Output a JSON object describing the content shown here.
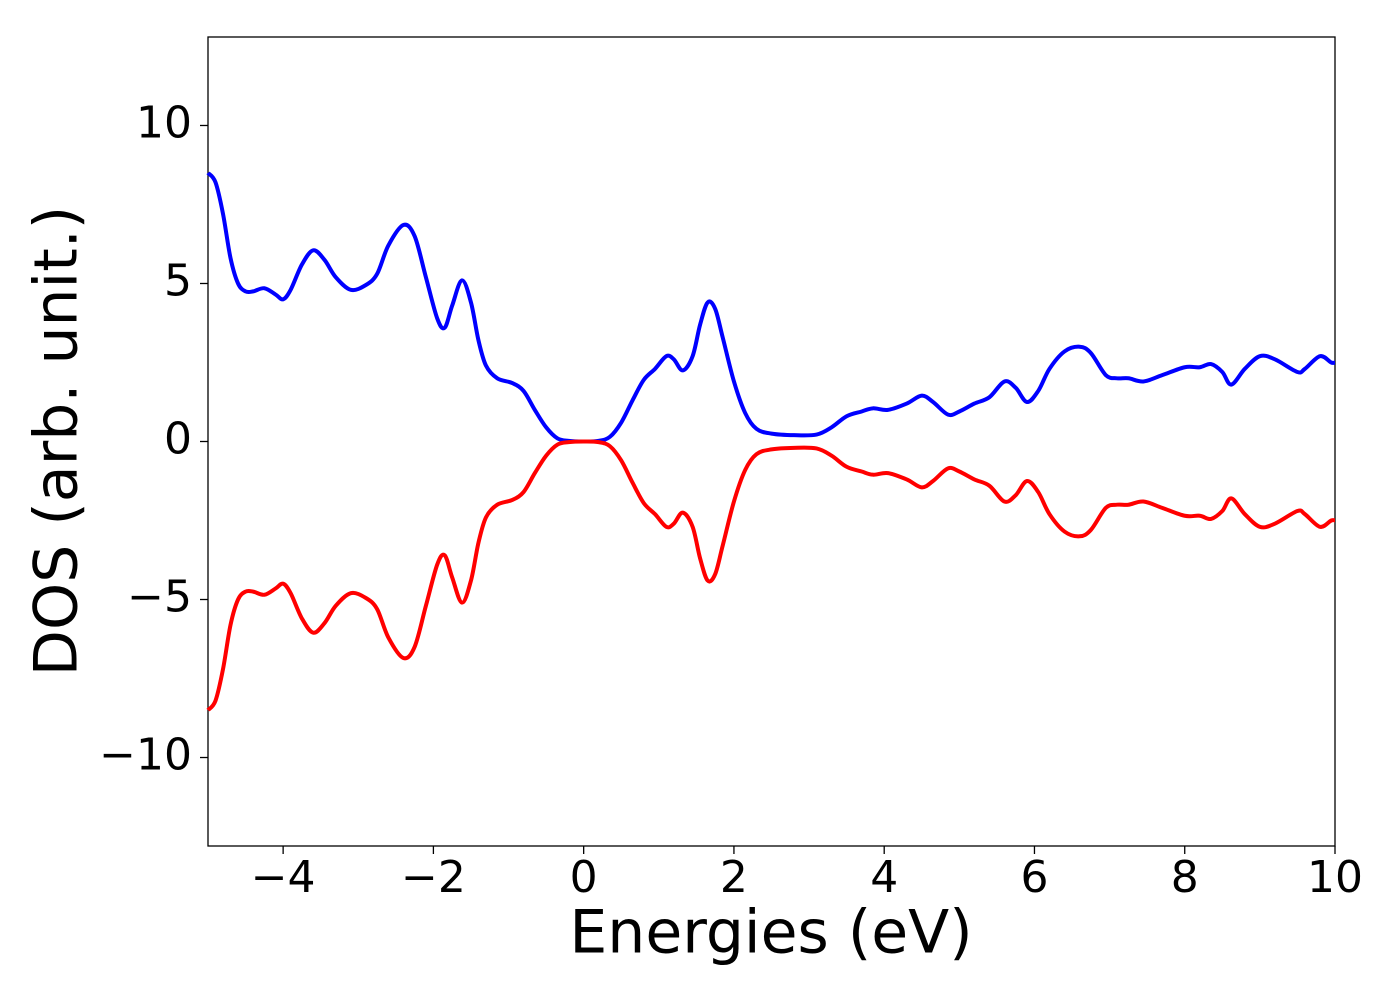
{
  "chart_data": {
    "type": "line",
    "x_label": "Energies (eV)",
    "y_label": "DOS (arb. unit.)",
    "x": [
      -5,
      -4.9,
      -4.8,
      -4.7,
      -4.6,
      -4.5,
      -4.4,
      -4.25,
      -4.1,
      -4.0,
      -3.9,
      -3.75,
      -3.6,
      -3.45,
      -3.3,
      -3.1,
      -2.9,
      -2.75,
      -2.6,
      -2.4,
      -2.25,
      -2.1,
      -1.95,
      -1.85,
      -1.75,
      -1.62,
      -1.5,
      -1.4,
      -1.3,
      -1.15,
      -0.95,
      -0.8,
      -0.65,
      -0.5,
      -0.35,
      -0.2,
      0,
      0.2,
      0.35,
      0.5,
      0.65,
      0.8,
      0.95,
      1.1,
      1.2,
      1.32,
      1.45,
      1.55,
      1.65,
      1.75,
      1.85,
      2.0,
      2.15,
      2.3,
      2.5,
      2.8,
      3.1,
      3.3,
      3.5,
      3.7,
      3.85,
      4.05,
      4.3,
      4.5,
      4.65,
      4.85,
      5.0,
      5.2,
      5.4,
      5.6,
      5.75,
      5.9,
      6.05,
      6.2,
      6.4,
      6.6,
      6.75,
      6.95,
      7.1,
      7.25,
      7.45,
      7.7,
      8.0,
      8.2,
      8.35,
      8.5,
      8.62,
      8.8,
      9.0,
      9.2,
      9.5,
      9.6,
      9.8,
      9.95,
      10
    ],
    "series": [
      {
        "color": "#0000ff",
        "values": [
          8.5,
          8.2,
          7.2,
          5.8,
          5.0,
          4.75,
          4.75,
          4.85,
          4.65,
          4.5,
          4.8,
          5.6,
          6.05,
          5.75,
          5.2,
          4.8,
          4.95,
          5.3,
          6.2,
          6.85,
          6.5,
          5.2,
          3.9,
          3.6,
          4.3,
          5.1,
          4.4,
          3.2,
          2.4,
          2.0,
          1.85,
          1.6,
          1.0,
          0.45,
          0.1,
          0.02,
          0,
          0.02,
          0.15,
          0.6,
          1.3,
          1.95,
          2.3,
          2.7,
          2.6,
          2.25,
          2.7,
          3.7,
          4.4,
          4.2,
          3.3,
          1.9,
          0.9,
          0.4,
          0.25,
          0.2,
          0.22,
          0.45,
          0.8,
          0.95,
          1.05,
          1.0,
          1.2,
          1.45,
          1.25,
          0.85,
          0.95,
          1.2,
          1.4,
          1.9,
          1.7,
          1.25,
          1.6,
          2.3,
          2.85,
          3.0,
          2.8,
          2.1,
          2.0,
          2.0,
          1.9,
          2.1,
          2.35,
          2.35,
          2.45,
          2.2,
          1.8,
          2.3,
          2.7,
          2.6,
          2.2,
          2.3,
          2.7,
          2.5,
          2.5
        ]
      },
      {
        "color": "#ff0000",
        "values": [
          -8.5,
          -8.2,
          -7.2,
          -5.8,
          -5.0,
          -4.75,
          -4.75,
          -4.85,
          -4.65,
          -4.5,
          -4.8,
          -5.6,
          -6.05,
          -5.75,
          -5.2,
          -4.8,
          -4.95,
          -5.3,
          -6.2,
          -6.85,
          -6.5,
          -5.2,
          -3.9,
          -3.6,
          -4.3,
          -5.1,
          -4.4,
          -3.2,
          -2.4,
          -2.0,
          -1.85,
          -1.6,
          -1.0,
          -0.45,
          -0.1,
          -0.02,
          0,
          -0.02,
          -0.15,
          -0.6,
          -1.3,
          -1.95,
          -2.3,
          -2.7,
          -2.6,
          -2.25,
          -2.7,
          -3.7,
          -4.4,
          -4.2,
          -3.3,
          -1.9,
          -0.9,
          -0.4,
          -0.25,
          -0.2,
          -0.22,
          -0.45,
          -0.8,
          -0.95,
          -1.05,
          -1.0,
          -1.2,
          -1.45,
          -1.25,
          -0.85,
          -0.95,
          -1.2,
          -1.4,
          -1.9,
          -1.7,
          -1.25,
          -1.6,
          -2.3,
          -2.85,
          -3.0,
          -2.8,
          -2.1,
          -2.0,
          -2.0,
          -1.9,
          -2.1,
          -2.35,
          -2.35,
          -2.45,
          -2.2,
          -1.8,
          -2.3,
          -2.7,
          -2.6,
          -2.2,
          -2.3,
          -2.7,
          -2.5,
          -2.5
        ]
      }
    ],
    "xlim": [
      -5,
      10
    ],
    "xticks": [
      {
        "value": -4,
        "label": "−4"
      },
      {
        "value": -2,
        "label": "−2"
      },
      0,
      2,
      4,
      6,
      8,
      10
    ],
    "ylim": [
      -12.8,
      12.8
    ],
    "yticks": [
      {
        "value": -10,
        "label": "−10"
      },
      {
        "value": -5,
        "label": "−5"
      },
      0,
      5,
      10
    ],
    "grid": false
  }
}
